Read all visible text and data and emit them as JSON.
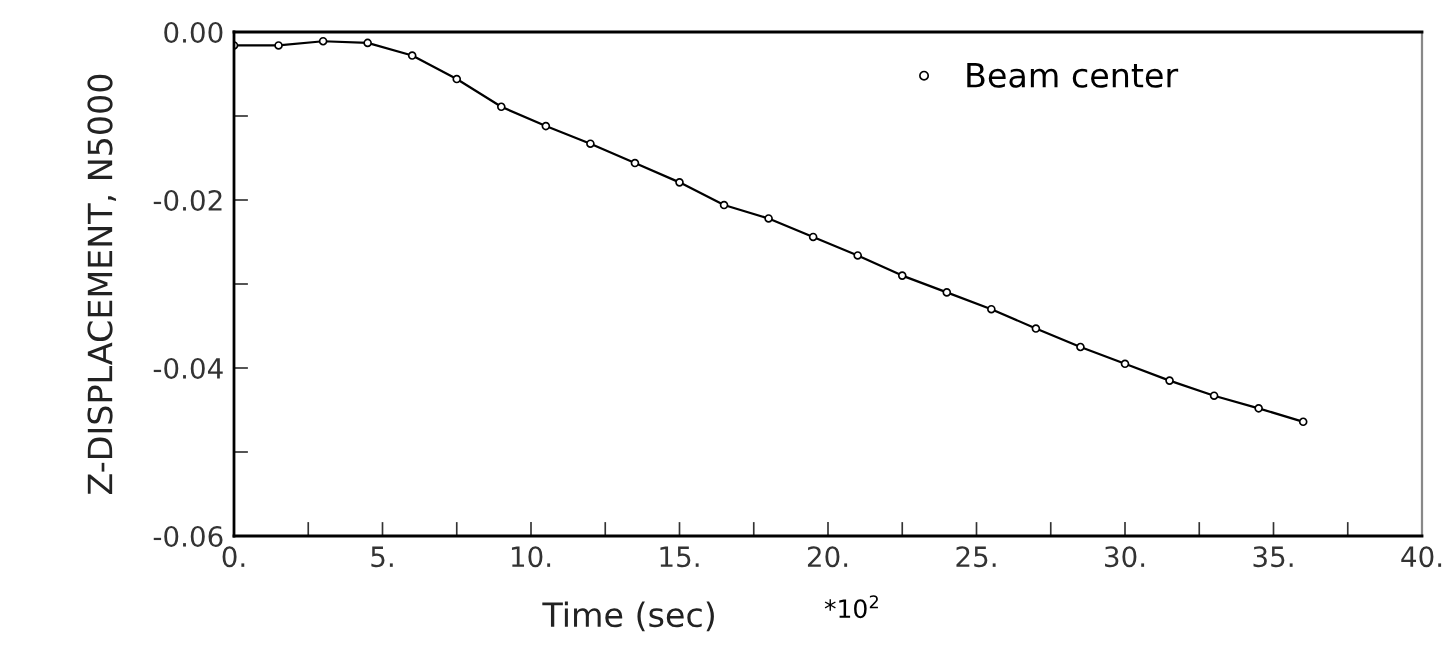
{
  "chart_data": {
    "type": "line",
    "xlabel": "Time (sec)",
    "ylabel": "Z-DISPLACEMENT, N5000",
    "annotations": [
      "*10$^{2}$"
    ],
    "x": [
      0,
      1.5,
      3,
      4.5,
      6,
      7.5,
      9,
      10.5,
      12,
      13.5,
      15,
      16.5,
      18,
      19.5,
      21,
      22.5,
      24,
      25.5,
      27,
      28.5,
      30,
      31.5,
      33,
      34.5,
      36
    ],
    "series": [
      {
        "name": "Beam center",
        "color": "#000000",
        "values": [
          -0.0016,
          -0.0016,
          -0.0011,
          -0.0013,
          -0.0028,
          -0.0056,
          -0.0089,
          -0.0112,
          -0.0133,
          -0.0156,
          -0.0179,
          -0.0206,
          -0.0222,
          -0.0244,
          -0.0266,
          -0.029,
          -0.031,
          -0.033,
          -0.0353,
          -0.0375,
          -0.0395,
          -0.0415,
          -0.0433,
          -0.0448,
          -0.0464
        ]
      }
    ],
    "xlim": [
      0,
      40
    ],
    "ylim": [
      -0.06,
      0
    ],
    "xticks": [
      {
        "value": 0,
        "label": "0."
      },
      {
        "value": 2.5,
        "label": null
      },
      {
        "value": 5,
        "label": "5."
      },
      {
        "value": 7.5,
        "label": null
      },
      {
        "value": 10,
        "label": "10."
      },
      {
        "value": 12.5,
        "label": null
      },
      {
        "value": 15,
        "label": "15."
      },
      {
        "value": 17.5,
        "label": null
      },
      {
        "value": 20,
        "label": "20."
      },
      {
        "value": 22.5,
        "label": null
      },
      {
        "value": 25,
        "label": "25."
      },
      {
        "value": 27.5,
        "label": null
      },
      {
        "value": 30,
        "label": "30."
      },
      {
        "value": 32.5,
        "label": null
      },
      {
        "value": 35,
        "label": "35."
      },
      {
        "value": 37.5,
        "label": null
      },
      {
        "value": 40,
        "label": "40."
      }
    ],
    "yticks": [
      {
        "value": -0.06,
        "label": "-0.06"
      },
      {
        "value": -0.05,
        "label": null
      },
      {
        "value": -0.04,
        "label": "-0.04"
      },
      {
        "value": -0.03,
        "label": null
      },
      {
        "value": -0.02,
        "label": "-0.02"
      },
      {
        "value": -0.01,
        "label": null
      },
      {
        "value": 0,
        "label": "0.00"
      }
    ],
    "marker": "circle",
    "line_style": "solid",
    "grid": false,
    "legend": "top right"
  }
}
